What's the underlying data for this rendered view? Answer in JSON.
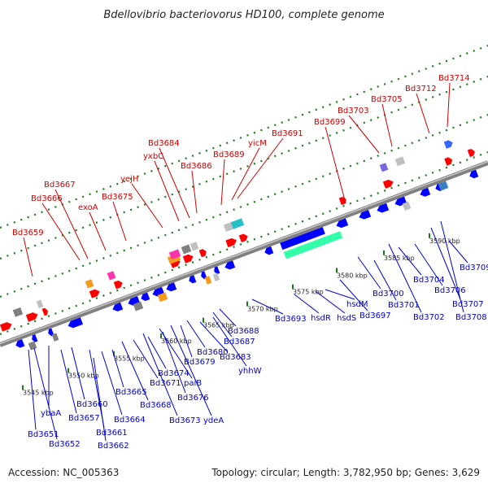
{
  "title": "Bdellovibrio bacteriovorus HD100, complete genome",
  "footer": {
    "accession": "Accession: NC_005363",
    "summary": "Topology: circular; Length: 3,782,950 bp; Genes: 3,629"
  },
  "colors": {
    "forward_label": "#cc0000",
    "reverse_label": "#0000cc",
    "backbone": "#808080",
    "tick_mark": "#1a7a1a"
  },
  "scale_ticks": [
    "3545 kbp",
    "3550 kbp",
    "3555 kbp",
    "3560 kbp",
    "3565 kbp",
    "3570 kbp",
    "3575 kbp",
    "3580 kbp",
    "3585 kbp",
    "3590 kbp"
  ],
  "top_labels": [
    "Bd3659",
    "Bd3666",
    "Bd3667",
    "exoA",
    "Bd3675",
    "yejH",
    "yxbC",
    "Bd3684",
    "Bd3686",
    "Bd3689",
    "yicM",
    "Bd3691",
    "Bd3699",
    "Bd3703",
    "Bd3705",
    "Bd3712",
    "Bd3714"
  ],
  "bottom_labels": [
    "Bd3651",
    "Bd3652",
    "ybaA",
    "Bd3657",
    "Bd3660",
    "Bd3661",
    "Bd3662",
    "Bd3664",
    "Bd3665",
    "Bd3668",
    "Bd3671",
    "Bd3673",
    "Bd3674",
    "paiB",
    "Bd3676",
    "ydeA",
    "Bd3679",
    "Bd3680",
    "Bd3683",
    "yhhW",
    "Bd3687",
    "Bd3688",
    "Bd3693",
    "hsdR",
    "hsdS",
    "hsdM",
    "Bd3697",
    "Bd3700",
    "Bd3701",
    "Bd3702",
    "Bd3704",
    "Bd3706",
    "Bd3707",
    "Bd3708",
    "Bd3709"
  ]
}
